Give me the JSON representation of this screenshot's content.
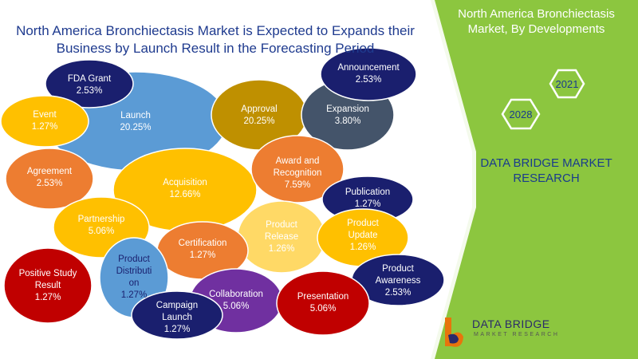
{
  "title": "North America Bronchiectasis Market is Expected to Expands their Business by Launch Result in the Forecasting Period",
  "panel": {
    "title": "North America Bronchiectasis Market, By Developments",
    "years": [
      "2021",
      "2028"
    ],
    "brand": "DATA BRIDGE MARKET RESEARCH"
  },
  "logo": {
    "main": "DATA BRIDGE",
    "sub": "MARKET RESEARCH"
  },
  "colors": {
    "panel_green": "#8cc63f",
    "navy": "#1a1f6e",
    "blue": "#5b9bd5",
    "yellow": "#ffc000",
    "orange": "#ed7d31",
    "gold": "#bf9000",
    "slate": "#44546a",
    "light_yellow": "#ffd966",
    "red": "#c00000",
    "purple": "#7030a0"
  },
  "bubbles": [
    {
      "key": "launch",
      "label": "Launch",
      "value": "20.25%",
      "color": "#5b9bd5",
      "text": "#ffffff"
    },
    {
      "key": "acquisition",
      "label": "Acquisition",
      "value": "12.66%",
      "color": "#ffc000",
      "text": "#ffffff"
    },
    {
      "key": "approval",
      "label": "Approval",
      "value": "20.25%",
      "color": "#bf9000",
      "text": "#ffffff"
    },
    {
      "key": "expansion",
      "label": "Expansion",
      "value": "3.80%",
      "color": "#44546a",
      "text": "#ffffff"
    },
    {
      "key": "announcement",
      "label": "Announcement",
      "value": "2.53%",
      "color": "#1a1f6e",
      "text": "#ffffff"
    },
    {
      "key": "fda-grant",
      "label": "FDA Grant",
      "value": "2.53%",
      "color": "#1a1f6e",
      "text": "#ffffff"
    },
    {
      "key": "event",
      "label": "Event",
      "value": "1.27%",
      "color": "#ffc000",
      "text": "#ffffff"
    },
    {
      "key": "agreement",
      "label": "Agreement",
      "value": "2.53%",
      "color": "#ed7d31",
      "text": "#ffffff"
    },
    {
      "key": "award",
      "label": "Award and Recognition",
      "value": "7.59%",
      "color": "#ed7d31",
      "text": "#ffffff"
    },
    {
      "key": "publication",
      "label": "Publication",
      "value": "1.27%",
      "color": "#1a1f6e",
      "text": "#ffffff"
    },
    {
      "key": "product-release",
      "label": "Product Release",
      "value": "1.26%",
      "color": "#ffd966",
      "text": "#ffffff"
    },
    {
      "key": "partnership",
      "label": "Partnership",
      "value": "5.06%",
      "color": "#ffc000",
      "text": "#ffffff"
    },
    {
      "key": "certification",
      "label": "Certification",
      "value": "1.27%",
      "color": "#ed7d31",
      "text": "#ffffff"
    },
    {
      "key": "product-update",
      "label": "Product Update",
      "value": "1.26%",
      "color": "#ffc000",
      "text": "#ffffff"
    },
    {
      "key": "product-awareness",
      "label": "Product Awareness",
      "value": "2.53%",
      "color": "#1a1f6e",
      "text": "#ffffff"
    },
    {
      "key": "positive-study",
      "label": "Positive Study Result",
      "value": "1.27%",
      "color": "#c00000",
      "text": "#ffffff"
    },
    {
      "key": "product-distribution",
      "label": "Product Distributi on",
      "value": "1.27%",
      "color": "#5b9bd5",
      "text": "#1a1f6e"
    },
    {
      "key": "collaboration",
      "label": "Collaboration",
      "value": "5.06%",
      "color": "#7030a0",
      "text": "#ffffff"
    },
    {
      "key": "presentation",
      "label": "Presentation",
      "value": "5.06%",
      "color": "#c00000",
      "text": "#ffffff"
    },
    {
      "key": "campaign-launch",
      "label": "Campaign Launch",
      "value": "1.27%",
      "color": "#1a1f6e",
      "text": "#ffffff"
    }
  ]
}
